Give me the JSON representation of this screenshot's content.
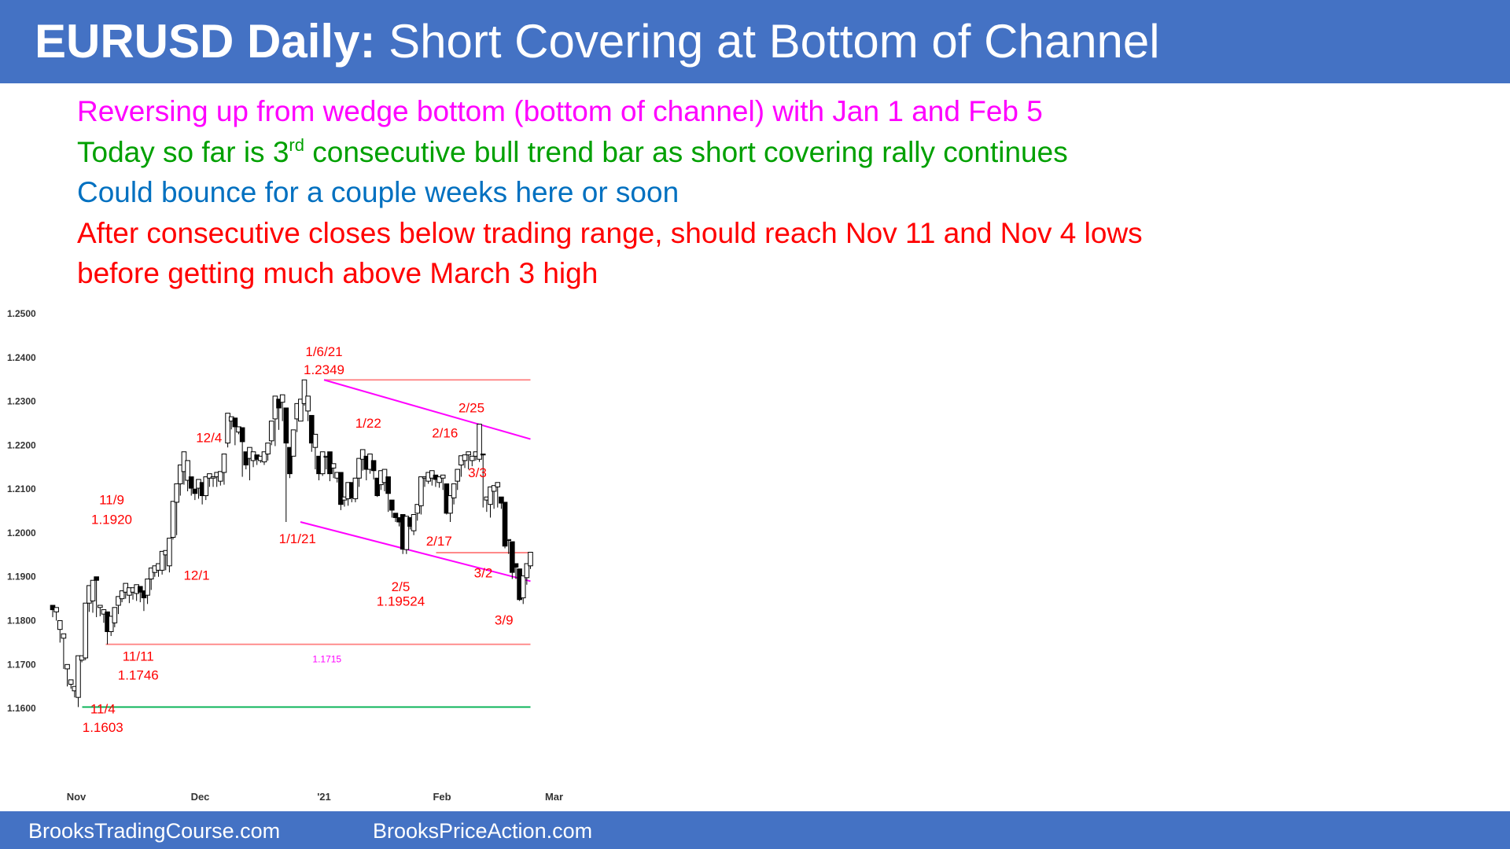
{
  "title": {
    "bold": "EURUSD Daily:",
    "rest": " Short Covering at Bottom of Channel"
  },
  "notes": [
    {
      "text": "Reversing up from wedge bottom (bottom of channel) with Jan 1 and Feb 5",
      "color": "#FF00FF"
    },
    {
      "pre": "Today so far is 3",
      "sup": "rd",
      "post": " consecutive bull trend bar as short covering rally continues",
      "color": "#00A000"
    },
    {
      "text": "Could bounce for a couple weeks here or soon",
      "color": "#0070C0"
    },
    {
      "text": "After consecutive closes below trading range, should reach Nov 11 and Nov 4 lows",
      "color": "#FF0000"
    },
    {
      "text": "before getting much above March 3 high",
      "color": "#FF0000"
    }
  ],
  "footer": {
    "left": "BrooksTradingCourse.com",
    "right": "BrooksPriceAction.com"
  },
  "colors": {
    "header": "#4472C4",
    "annotation": "#FF0000",
    "channel": "#FF00FF",
    "level_red": "#FF8080",
    "level_green": "#00B050"
  },
  "chart_data": {
    "type": "candlestick",
    "ylim": [
      1.155,
      1.25
    ],
    "yticks": [
      "1.2500",
      "1.2400",
      "1.2300",
      "1.2200",
      "1.2100",
      "1.2000",
      "1.1900",
      "1.1800",
      "1.1700",
      "1.1600"
    ],
    "xticks": [
      {
        "label": "Nov",
        "bar": 4
      },
      {
        "label": "Dec",
        "bar": 25
      },
      {
        "label": "'21",
        "bar": 46
      },
      {
        "label": "Feb",
        "bar": 66
      },
      {
        "label": "Mar",
        "bar": 85
      }
    ],
    "bars": [
      [
        1.1835,
        1.1825,
        1.1808
      ],
      [
        1.182,
        1.183,
        1.18
      ],
      [
        1.178,
        1.18,
        1.175
      ],
      [
        1.176,
        1.177,
        1.169
      ],
      [
        1.169,
        1.17,
        1.165
      ],
      [
        1.1655,
        1.1665,
        1.1645
      ],
      [
        1.164,
        1.165,
        1.1625
      ],
      [
        1.1625,
        1.172,
        1.1603
      ],
      [
        1.171,
        1.172,
        1.1705
      ],
      [
        1.1715,
        1.184,
        1.171
      ],
      [
        1.184,
        1.188,
        1.182
      ],
      [
        1.1845,
        1.1892,
        1.1818
      ],
      [
        1.19,
        1.1892,
        1.1808
      ],
      [
        1.183,
        1.1835,
        1.181
      ],
      [
        1.1815,
        1.1825,
        1.1795
      ],
      [
        1.182,
        1.1775,
        1.1746
      ],
      [
        1.1775,
        1.181,
        1.1765
      ],
      [
        1.1795,
        1.183,
        1.1785
      ],
      [
        1.1835,
        1.1855,
        1.1815
      ],
      [
        1.185,
        1.1868,
        1.1842
      ],
      [
        1.1865,
        1.1885,
        1.185
      ],
      [
        1.1858,
        1.1875,
        1.184
      ],
      [
        1.1865,
        1.1875,
        1.1848
      ],
      [
        1.1862,
        1.1882,
        1.1845
      ],
      [
        1.1878,
        1.1865,
        1.1842
      ],
      [
        1.1868,
        1.1852,
        1.1822
      ],
      [
        1.1858,
        1.1895,
        1.1838
      ],
      [
        1.1895,
        1.192,
        1.187
      ],
      [
        1.191,
        1.1925,
        1.19
      ],
      [
        1.1915,
        1.193,
        1.19
      ],
      [
        1.1915,
        1.1958,
        1.1905
      ],
      [
        1.195,
        1.196,
        1.1915
      ],
      [
        1.1925,
        1.1988,
        1.191
      ],
      [
        1.199,
        1.2072,
        1.1985
      ],
      [
        1.207,
        1.2112,
        1.1995
      ],
      [
        1.2112,
        1.2155,
        1.2085
      ],
      [
        1.214,
        1.2185,
        1.211
      ],
      [
        1.212,
        1.2165,
        1.2095
      ],
      [
        1.2128,
        1.2102,
        1.2085
      ],
      [
        1.21,
        1.209,
        1.2075
      ],
      [
        1.2102,
        1.2122,
        1.2078
      ],
      [
        1.2115,
        1.2085,
        1.2065
      ],
      [
        1.2085,
        1.2128,
        1.2075
      ],
      [
        1.2125,
        1.2135,
        1.2105
      ],
      [
        1.2125,
        1.2128,
        1.2105
      ],
      [
        1.2128,
        1.2138,
        1.2105
      ],
      [
        1.2118,
        1.214,
        1.2108
      ],
      [
        1.2138,
        1.218,
        1.211
      ],
      [
        1.2205,
        1.2273,
        1.2195
      ],
      [
        1.2255,
        1.2265,
        1.2236
      ],
      [
        1.2262,
        1.2242,
        1.22
      ],
      [
        1.223,
        1.2242,
        1.2225
      ],
      [
        1.224,
        1.2208,
        1.2128
      ],
      [
        1.2185,
        1.2155,
        1.2145
      ],
      [
        1.217,
        1.2195,
        1.212
      ],
      [
        1.2165,
        1.2185,
        1.215
      ],
      [
        1.2178,
        1.2168,
        1.2155
      ],
      [
        1.2165,
        1.2175,
        1.216
      ],
      [
        1.2162,
        1.2185,
        1.2155
      ],
      [
        1.218,
        1.2205,
        1.2165
      ],
      [
        1.221,
        1.2255,
        1.22
      ],
      [
        1.226,
        1.2312,
        1.2198
      ],
      [
        1.2305,
        1.2285,
        1.2235
      ],
      [
        1.2298,
        1.2315,
        1.2255
      ],
      [
        1.2285,
        1.2205,
        1.2025
      ],
      [
        1.2195,
        1.2135,
        1.2125
      ],
      [
        1.2175,
        1.2235,
        1.2175
      ],
      [
        1.226,
        1.2295,
        1.223
      ],
      [
        1.2255,
        1.2305,
        1.2255
      ],
      [
        1.2295,
        1.2349,
        1.229
      ],
      [
        1.2278,
        1.2312,
        1.2255
      ],
      [
        1.2268,
        1.2205,
        1.2185
      ],
      [
        1.2195,
        1.2225,
        1.2145
      ],
      [
        1.2175,
        1.2135,
        1.212
      ],
      [
        1.2135,
        1.2185,
        1.213
      ],
      [
        1.2175,
        1.2175,
        1.2145
      ],
      [
        1.2185,
        1.2135,
        1.2118
      ],
      [
        1.2148,
        1.2158,
        1.2125
      ],
      [
        1.2125,
        1.2138,
        1.2115
      ],
      [
        1.2138,
        1.2065,
        1.2052
      ],
      [
        1.2075,
        1.2082,
        1.206
      ],
      [
        1.2078,
        1.2115,
        1.2062
      ],
      [
        1.2115,
        1.208,
        1.207
      ],
      [
        1.2078,
        1.2125,
        1.207
      ],
      [
        1.2125,
        1.217,
        1.2105
      ],
      [
        1.2168,
        1.219,
        1.2142
      ],
      [
        1.2175,
        1.2145,
        1.212
      ],
      [
        1.2145,
        1.218,
        1.2135
      ],
      [
        1.2165,
        1.2142,
        1.2122
      ],
      [
        1.2125,
        1.2085,
        1.2082
      ],
      [
        1.211,
        1.2142,
        1.2098
      ],
      [
        1.2115,
        1.2145,
        1.2095
      ],
      [
        1.2128,
        1.209,
        1.2048
      ],
      [
        1.2075,
        1.2052,
        1.2035
      ],
      [
        1.2045,
        1.2035,
        1.2025
      ],
      [
        1.2035,
        1.2025,
        1.2015
      ],
      [
        1.2042,
        1.1963,
        1.1952
      ],
      [
        1.1962,
        1.2038,
        1.1952
      ],
      [
        1.2035,
        1.2015,
        1.2008
      ],
      [
        1.2005,
        1.2042,
        1.1995
      ],
      [
        1.2045,
        1.2065,
        1.2028
      ],
      [
        1.2062,
        1.2128,
        1.2042
      ],
      [
        1.2125,
        1.2128,
        1.2105
      ],
      [
        1.2118,
        1.2138,
        1.2112
      ],
      [
        1.2125,
        1.2142,
        1.2108
      ],
      [
        1.2132,
        1.2122,
        1.2105
      ],
      [
        1.2115,
        1.2128,
        1.2103
      ],
      [
        1.2125,
        1.2132,
        1.2098
      ],
      [
        1.2112,
        1.2045,
        1.2042
      ],
      [
        1.2045,
        1.2085,
        1.2025
      ],
      [
        1.208,
        1.2112,
        1.2065
      ],
      [
        1.2118,
        1.2145,
        1.2098
      ],
      [
        1.2155,
        1.2176,
        1.2128
      ],
      [
        1.2165,
        1.2178,
        1.2148
      ],
      [
        1.2178,
        1.2185,
        1.2145
      ],
      [
        1.2165,
        1.2175,
        1.2152
      ],
      [
        1.2175,
        1.2185,
        1.2165
      ],
      [
        1.2168,
        1.2248,
        1.2162
      ],
      [
        1.218,
        1.2178,
        1.2058
      ],
      [
        1.2075,
        1.2082,
        1.2048
      ],
      [
        1.2065,
        1.2105,
        1.2035
      ],
      [
        1.2095,
        1.2108,
        1.2055
      ],
      [
        1.2105,
        1.2115,
        1.2058
      ],
      [
        1.2082,
        1.2068,
        1.2055
      ],
      [
        1.207,
        1.197,
        1.1965
      ],
      [
        1.1985,
        1.1985,
        1.1952
      ],
      [
        1.198,
        1.191,
        1.1895
      ],
      [
        1.193,
        1.1922,
        1.1895
      ],
      [
        1.1918,
        1.1848,
        1.1845
      ],
      [
        1.1852,
        1.1902,
        1.1838
      ],
      [
        1.1898,
        1.193,
        1.1882
      ],
      [
        1.1925,
        1.1956,
        1.1918
      ]
    ],
    "lines": [
      {
        "name": "Jan 6 high",
        "value": 1.2349,
        "from": 46,
        "to": 81,
        "color": "#FF8080"
      },
      {
        "name": "Feb 17 low",
        "value": 1.1955,
        "from": 65,
        "to": 81,
        "color": "#FF8080"
      },
      {
        "name": "Nov 11 low",
        "value": 1.1746,
        "from": 9,
        "to": 81,
        "color": "#FF8080"
      },
      {
        "name": "Nov 4 low",
        "value": 1.1603,
        "from": 5,
        "to": 81,
        "color": "#00B050"
      }
    ],
    "channel": [
      {
        "from": [
          46,
          1.2349
        ],
        "to": [
          81,
          1.2214
        ],
        "color": "#FF00FF"
      },
      {
        "from": [
          42,
          1.2025
        ],
        "to": [
          81,
          1.189
        ],
        "color": "#FF00FF"
      }
    ],
    "labels": [
      {
        "text": "1/6/21",
        "bar": 46,
        "price": 1.2414
      },
      {
        "text": "1.2349",
        "bar": 46,
        "price": 1.2373
      },
      {
        "text": "12/4",
        "bar": 26.5,
        "price": 1.2218
      },
      {
        "text": "11/9",
        "bar": 10,
        "price": 1.2076
      },
      {
        "text": "1.1920",
        "bar": 10,
        "price": 1.2031
      },
      {
        "text": "12/1",
        "bar": 24.4,
        "price": 1.1904
      },
      {
        "text": "11/11",
        "bar": 14.5,
        "price": 1.1719
      },
      {
        "text": "1.1746",
        "bar": 14.5,
        "price": 1.1676
      },
      {
        "text": "11/4",
        "bar": 8.5,
        "price": 1.1599
      },
      {
        "text": "1.1603",
        "bar": 8.5,
        "price": 1.1557
      },
      {
        "text": "1/1/21",
        "bar": 41.5,
        "price": 1.1987
      },
      {
        "text": "1/22",
        "bar": 53.5,
        "price": 1.2251
      },
      {
        "text": "2/16",
        "bar": 66.5,
        "price": 1.2228
      },
      {
        "text": "2/25",
        "bar": 71,
        "price": 1.2286
      },
      {
        "text": "3/3",
        "bar": 72,
        "price": 1.2138
      },
      {
        "text": "2/17",
        "bar": 65.5,
        "price": 1.1982
      },
      {
        "text": "3/2",
        "bar": 73,
        "price": 1.1909
      },
      {
        "text": "2/5",
        "bar": 59,
        "price": 1.1878
      },
      {
        "text": "1.19524",
        "bar": 59,
        "price": 1.1845
      },
      {
        "text": "3/9",
        "bar": 76.5,
        "price": 1.1802
      }
    ],
    "small_labels": [
      {
        "text": "1.1715",
        "bar": 46.5,
        "price": 1.1712,
        "color": "#FF00FF"
      }
    ]
  }
}
